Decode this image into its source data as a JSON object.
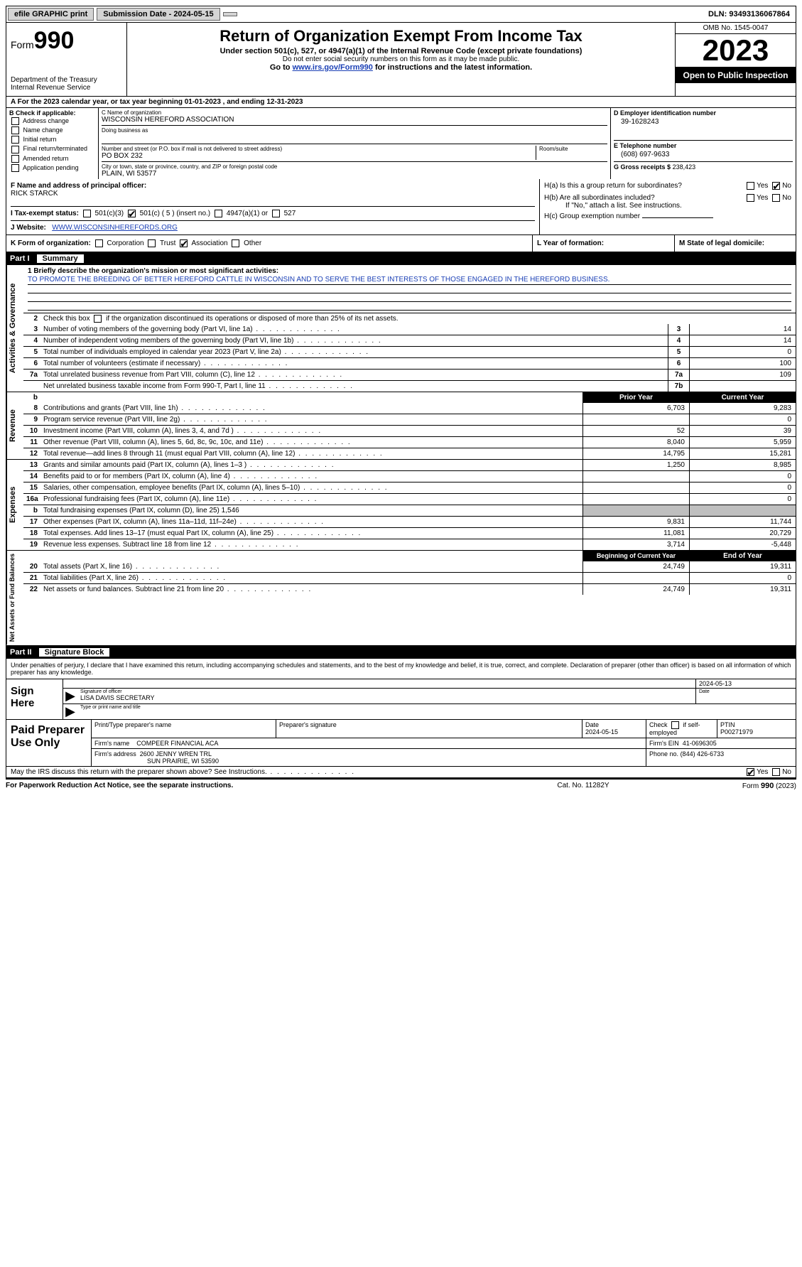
{
  "topbar": {
    "efile": "efile GRAPHIC print",
    "submission_label": "Submission Date - 2024-05-15",
    "dln": "DLN: 93493136067864"
  },
  "header": {
    "form_word": "Form",
    "form_num": "990",
    "dept": "Department of the Treasury\nInternal Revenue Service",
    "title": "Return of Organization Exempt From Income Tax",
    "sub1": "Under section 501(c), 527, or 4947(a)(1) of the Internal Revenue Code (except private foundations)",
    "sub2": "Do not enter social security numbers on this form as it may be made public.",
    "sub3_pre": "Go to ",
    "sub3_link": "www.irs.gov/Form990",
    "sub3_post": " for instructions and the latest information.",
    "omb": "OMB No. 1545-0047",
    "year": "2023",
    "inspect": "Open to Public Inspection"
  },
  "cal": "A  For the 2023 calendar year, or tax year beginning 01-01-2023    , and ending 12-31-2023",
  "B": {
    "label": "B Check if applicable:",
    "opts": [
      "Address change",
      "Name change",
      "Initial return",
      "Final return/terminated",
      "Amended return",
      "Application pending"
    ]
  },
  "C": {
    "name_lbl": "C Name of organization",
    "name": "WISCONSIN HEREFORD ASSOCIATION",
    "dba_lbl": "Doing business as",
    "dba": "",
    "addr_lbl": "Number and street (or P.O. box if mail is not delivered to street address)",
    "addr": "PO BOX 232",
    "room_lbl": "Room/suite",
    "city_lbl": "City or town, state or province, country, and ZIP or foreign postal code",
    "city": "PLAIN, WI  53577"
  },
  "D": {
    "lbl": "D Employer identification number",
    "val": "39-1628243"
  },
  "E": {
    "lbl": "E Telephone number",
    "val": "(608) 697-9633"
  },
  "G": {
    "lbl": "G Gross receipts $",
    "val": "238,423"
  },
  "F": {
    "lbl": "F  Name and address of principal officer:",
    "val": "RICK STARCK"
  },
  "H": {
    "a": "H(a)  Is this a group return for subordinates?",
    "a_yes": "Yes",
    "a_no": "No",
    "b": "H(b)  Are all subordinates included?",
    "b_note": "If \"No,\" attach a list. See instructions.",
    "c": "H(c)  Group exemption number"
  },
  "I": {
    "lbl": "I    Tax-exempt status:",
    "o1": "501(c)(3)",
    "o2": "501(c) ( 5 ) (insert no.)",
    "o3": "4947(a)(1) or",
    "o4": "527"
  },
  "J": {
    "lbl": "J   Website:",
    "val": "WWW.WISCONSINHEREFORDS.ORG"
  },
  "K": {
    "lbl": "K Form of organization:",
    "opts": [
      "Corporation",
      "Trust",
      "Association",
      "Other"
    ]
  },
  "L": "L Year of formation:",
  "M": "M State of legal domicile:",
  "part1": {
    "num": "Part I",
    "title": "Summary"
  },
  "ag": {
    "label": "Activities & Governance",
    "l1_lbl": "1   Briefly describe the organization's mission or most significant activities:",
    "l1_val": "TO PROMOTE THE BREEDING OF BETTER HEREFORD CATTLE IN WISCONSIN AND TO SERVE THE BEST INTERESTS OF THOSE ENGAGED IN THE HEREFORD BUSINESS.",
    "l2": "Check this box       if the organization discontinued its operations or disposed of more than 25% of its net assets.",
    "rows": [
      {
        "n": "3",
        "t": "Number of voting members of the governing body (Part VI, line 1a)",
        "b": "3",
        "v": "14"
      },
      {
        "n": "4",
        "t": "Number of independent voting members of the governing body (Part VI, line 1b)",
        "b": "4",
        "v": "14"
      },
      {
        "n": "5",
        "t": "Total number of individuals employed in calendar year 2023 (Part V, line 2a)",
        "b": "5",
        "v": "0"
      },
      {
        "n": "6",
        "t": "Total number of volunteers (estimate if necessary)",
        "b": "6",
        "v": "100"
      },
      {
        "n": "7a",
        "t": "Total unrelated business revenue from Part VIII, column (C), line 12",
        "b": "7a",
        "v": "109"
      },
      {
        "n": "",
        "t": "Net unrelated business taxable income from Form 990-T, Part I, line 11",
        "b": "7b",
        "v": ""
      }
    ]
  },
  "rev": {
    "label": "Revenue",
    "hdr_prior": "Prior Year",
    "hdr_curr": "Current Year",
    "rows": [
      {
        "n": "8",
        "t": "Contributions and grants (Part VIII, line 1h)",
        "p": "6,703",
        "c": "9,283"
      },
      {
        "n": "9",
        "t": "Program service revenue (Part VIII, line 2g)",
        "p": "",
        "c": "0"
      },
      {
        "n": "10",
        "t": "Investment income (Part VIII, column (A), lines 3, 4, and 7d )",
        "p": "52",
        "c": "39"
      },
      {
        "n": "11",
        "t": "Other revenue (Part VIII, column (A), lines 5, 6d, 8c, 9c, 10c, and 11e)",
        "p": "8,040",
        "c": "5,959"
      },
      {
        "n": "12",
        "t": "Total revenue—add lines 8 through 11 (must equal Part VIII, column (A), line 12)",
        "p": "14,795",
        "c": "15,281"
      }
    ]
  },
  "exp": {
    "label": "Expenses",
    "rows": [
      {
        "n": "13",
        "t": "Grants and similar amounts paid (Part IX, column (A), lines 1–3 )",
        "p": "1,250",
        "c": "8,985"
      },
      {
        "n": "14",
        "t": "Benefits paid to or for members (Part IX, column (A), line 4)",
        "p": "",
        "c": "0"
      },
      {
        "n": "15",
        "t": "Salaries, other compensation, employee benefits (Part IX, column (A), lines 5–10)",
        "p": "",
        "c": "0"
      },
      {
        "n": "16a",
        "t": "Professional fundraising fees (Part IX, column (A), line 11e)",
        "p": "",
        "c": "0"
      },
      {
        "n": "b",
        "t": "Total fundraising expenses (Part IX, column (D), line 25) 1,546",
        "p": "grey",
        "c": "grey"
      },
      {
        "n": "17",
        "t": "Other expenses (Part IX, column (A), lines 11a–11d, 11f–24e)",
        "p": "9,831",
        "c": "11,744"
      },
      {
        "n": "18",
        "t": "Total expenses. Add lines 13–17 (must equal Part IX, column (A), line 25)",
        "p": "11,081",
        "c": "20,729"
      },
      {
        "n": "19",
        "t": "Revenue less expenses. Subtract line 18 from line 12",
        "p": "3,714",
        "c": "-5,448"
      }
    ]
  },
  "na": {
    "label": "Net Assets or Fund Balances",
    "hdr_beg": "Beginning of Current Year",
    "hdr_end": "End of Year",
    "rows": [
      {
        "n": "20",
        "t": "Total assets (Part X, line 16)",
        "p": "24,749",
        "c": "19,311"
      },
      {
        "n": "21",
        "t": "Total liabilities (Part X, line 26)",
        "p": "",
        "c": "0"
      },
      {
        "n": "22",
        "t": "Net assets or fund balances. Subtract line 21 from line 20",
        "p": "24,749",
        "c": "19,311"
      }
    ]
  },
  "part2": {
    "num": "Part II",
    "title": "Signature Block"
  },
  "perjury": "Under penalties of perjury, I declare that I have examined this return, including accompanying schedules and statements, and to the best of my knowledge and belief, it is true, correct, and complete. Declaration of preparer (other than officer) is based on all information of which preparer has any knowledge.",
  "sign": {
    "left": "Sign Here",
    "date": "2024-05-13",
    "sig_lbl": "Signature of officer",
    "name": "LISA DAVIS SECRETARY",
    "type_lbl": "Type or print name and title",
    "date_lbl": "Date"
  },
  "prep": {
    "left": "Paid Preparer Use Only",
    "h1": "Print/Type preparer's name",
    "h2": "Preparer's signature",
    "h3": "Date",
    "h3v": "2024-05-15",
    "h4": "Check       if self-employed",
    "h5": "PTIN",
    "h5v": "P00271979",
    "firm_lbl": "Firm's name",
    "firm": "COMPEER FINANCIAL ACA",
    "ein_lbl": "Firm's EIN",
    "ein": "41-0696305",
    "addr_lbl": "Firm's address",
    "addr1": "2600 JENNY WREN TRL",
    "addr2": "SUN PRAIRIE, WI  53590",
    "phone_lbl": "Phone no.",
    "phone": "(844) 426-6733"
  },
  "discuss": {
    "txt": "May the IRS discuss this return with the preparer shown above? See Instructions.",
    "yes": "Yes",
    "no": "No"
  },
  "footer": {
    "f1": "For Paperwork Reduction Act Notice, see the separate instructions.",
    "f2": "Cat. No. 11282Y",
    "f3a": "Form ",
    "f3b": "990",
    "f3c": " (2023)"
  },
  "b_row_lbl": "b"
}
